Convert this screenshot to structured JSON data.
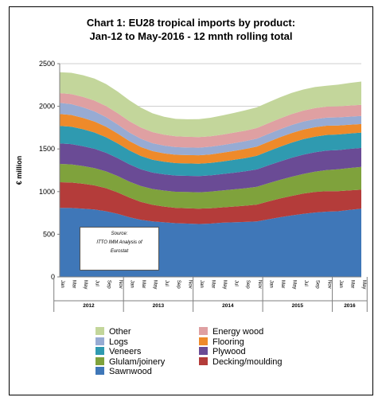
{
  "chart_data": {
    "type": "area",
    "title": "Chart 1: EU28 tropical imports by product:\nJan-12 to May-2016 - 12 mnth rolling total",
    "ylabel": "€ million",
    "xlabel": "",
    "ylim": [
      0,
      2500
    ],
    "yticks": [
      "0",
      "500",
      "1000",
      "1500",
      "2000",
      "2500"
    ],
    "stacked": true,
    "grid": true,
    "legend_position": "bottom",
    "x": [
      "Jan",
      "Mar",
      "May",
      "Jul",
      "Sep",
      "Nov",
      "Jan",
      "Mar",
      "May",
      "Jul",
      "Sep",
      "Nov",
      "Jan",
      "Mar",
      "May",
      "Jul",
      "Sep",
      "Nov",
      "Jan",
      "Mar",
      "May",
      "Jul",
      "Sep",
      "Nov",
      "Jan",
      "Mar",
      "May"
    ],
    "years": [
      {
        "label": "2012",
        "span": 6
      },
      {
        "label": "2013",
        "span": 6
      },
      {
        "label": "2014",
        "span": 6
      },
      {
        "label": "2015",
        "span": 6
      },
      {
        "label": "2016",
        "span": 3
      }
    ],
    "series": [
      {
        "name": "Sawnwood",
        "color": "#3f77b8",
        "values": [
          810,
          808,
          800,
          790,
          770,
          740,
          700,
          670,
          650,
          640,
          630,
          625,
          620,
          625,
          635,
          640,
          645,
          650,
          675,
          700,
          720,
          740,
          755,
          765,
          770,
          785,
          800
        ]
      },
      {
        "name": "Decking/moulding",
        "color": "#b43c3a",
        "values": [
          300,
          298,
          292,
          283,
          270,
          250,
          230,
          210,
          195,
          185,
          180,
          180,
          180,
          180,
          180,
          185,
          190,
          198,
          210,
          220,
          230,
          237,
          240,
          240,
          236,
          230,
          222
        ]
      },
      {
        "name": "Glulam/joinery",
        "color": "#7fa23c",
        "values": [
          215,
          213,
          208,
          203,
          197,
          192,
          188,
          186,
          186,
          187,
          188,
          190,
          192,
          195,
          198,
          201,
          204,
          208,
          213,
          218,
          224,
          230,
          238,
          247,
          255,
          262,
          268
        ]
      },
      {
        "name": "Plywood",
        "color": "#6a4b95",
        "values": [
          240,
          238,
          233,
          226,
          218,
          210,
          202,
          196,
          192,
          190,
          190,
          190,
          190,
          190,
          192,
          195,
          199,
          204,
          210,
          216,
          222,
          226,
          228,
          228,
          226,
          224,
          222
        ]
      },
      {
        "name": "Veneers",
        "color": "#2f9ab0",
        "values": [
          205,
          203,
          198,
          191,
          182,
          172,
          163,
          156,
          151,
          148,
          146,
          145,
          145,
          146,
          148,
          151,
          155,
          160,
          166,
          172,
          178,
          182,
          184,
          184,
          183,
          181,
          180
        ]
      },
      {
        "name": "Flooring",
        "color": "#ee8a2a",
        "values": [
          140,
          138,
          134,
          129,
          123,
          116,
          110,
          105,
          101,
          99,
          98,
          98,
          99,
          100,
          102,
          104,
          106,
          108,
          110,
          112,
          113,
          112,
          110,
          108,
          105,
          102,
          100
        ]
      },
      {
        "name": "Logs",
        "color": "#97abd3",
        "values": [
          130,
          127,
          123,
          118,
          112,
          106,
          100,
          96,
          92,
          90,
          89,
          89,
          89,
          90,
          90,
          91,
          92,
          92,
          92,
          93,
          94,
          95,
          95,
          95,
          95,
          95,
          95
        ]
      },
      {
        "name": "Energy wood",
        "color": "#dfa0a2",
        "values": [
          115,
          118,
          122,
          127,
          131,
          133,
          133,
          132,
          131,
          129,
          127,
          126,
          124,
          123,
          123,
          123,
          124,
          125,
          126,
          127,
          128,
          128,
          129,
          129,
          130,
          130,
          130
        ]
      },
      {
        "name": "Other",
        "color": "#c3d69b",
        "values": [
          245,
          250,
          255,
          258,
          258,
          254,
          245,
          233,
          220,
          210,
          205,
          205,
          210,
          217,
          225,
          232,
          238,
          243,
          246,
          248,
          248,
          247,
          247,
          246,
          254,
          265,
          273
        ]
      }
    ],
    "legend_order": [
      "Other",
      "Energy wood",
      "Logs",
      "Flooring",
      "Veneers",
      "Plywood",
      "Glulam/joinery",
      "Decking/moulding",
      "Sawnwood"
    ],
    "annotation": [
      "Source:",
      "ITTO IMM Analysis of",
      "Eurostat"
    ]
  }
}
